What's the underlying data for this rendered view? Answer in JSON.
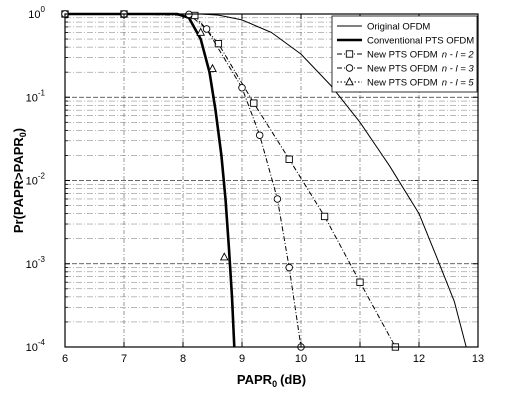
{
  "chart_data": {
    "type": "line",
    "xlabel": "PAPR",
    "xlabel_sub": "0",
    "xlabel_unit": "(dB)",
    "ylabel": "Pr(PAPR>PAPR",
    "ylabel_sub": "0",
    "ylabel_close": ")",
    "xlim": [
      6,
      13
    ],
    "ylim": [
      0.0001,
      1
    ],
    "yscale": "log",
    "xticks": [
      "6",
      "7",
      "8",
      "9",
      "10",
      "11",
      "12",
      "13"
    ],
    "yticks": [
      {
        "base": "10",
        "exp": "0"
      },
      {
        "base": "10",
        "exp": "-1"
      },
      {
        "base": "10",
        "exp": "-2"
      },
      {
        "base": "10",
        "exp": "-3"
      },
      {
        "base": "10",
        "exp": "-4"
      }
    ],
    "grid": true,
    "legend_position": "top-right",
    "series": [
      {
        "name": "Original OFDM",
        "style": "solid",
        "marker": "none",
        "width": "thin",
        "points": [
          [
            6,
            1
          ],
          [
            7,
            1
          ],
          [
            8,
            1
          ],
          [
            8.3,
            0.999
          ],
          [
            8.6,
            0.97
          ],
          [
            9,
            0.85
          ],
          [
            9.5,
            0.6
          ],
          [
            10,
            0.33
          ],
          [
            10.5,
            0.14
          ],
          [
            11,
            0.05
          ],
          [
            11.5,
            0.015
          ],
          [
            12,
            0.004
          ],
          [
            12.3,
            0.0012
          ],
          [
            12.6,
            0.00035
          ],
          [
            12.8,
            0.0001
          ]
        ]
      },
      {
        "name": "Conventional PTS OFDM",
        "style": "solid",
        "marker": "none",
        "width": "thick",
        "points": [
          [
            6,
            1
          ],
          [
            7,
            1
          ],
          [
            7.9,
            1
          ],
          [
            8.1,
            0.9
          ],
          [
            8.3,
            0.5
          ],
          [
            8.45,
            0.2
          ],
          [
            8.55,
            0.07
          ],
          [
            8.65,
            0.02
          ],
          [
            8.72,
            0.006
          ],
          [
            8.78,
            0.0015
          ],
          [
            8.83,
            0.0004
          ],
          [
            8.87,
            0.0001
          ]
        ]
      },
      {
        "name": "New PTS OFDM  n - l = 2",
        "label_parts": [
          "New PTS OFDM",
          "n - l = 2"
        ],
        "style": "dashdot",
        "marker": "square",
        "width": "thin",
        "points": [
          [
            6,
            1
          ],
          [
            7,
            1
          ],
          [
            8.2,
            0.96
          ],
          [
            8.6,
            0.44
          ],
          [
            9.2,
            0.085
          ],
          [
            9.8,
            0.018
          ],
          [
            10.4,
            0.0037
          ],
          [
            11,
            0.0006
          ],
          [
            11.6,
            0.0001
          ]
        ]
      },
      {
        "name": "New PTS OFDM  n - l = 3",
        "label_parts": [
          "New PTS OFDM",
          "n - l = 3"
        ],
        "style": "dashdot",
        "marker": "circle",
        "width": "thin",
        "points": [
          [
            6,
            1
          ],
          [
            7,
            1
          ],
          [
            8.1,
            0.99
          ],
          [
            8.4,
            0.66
          ],
          [
            9,
            0.13
          ],
          [
            9.3,
            0.035
          ],
          [
            9.6,
            0.006
          ],
          [
            9.8,
            0.0009
          ],
          [
            10,
            0.0001
          ]
        ]
      },
      {
        "name": "New PTS OFDM  n - l = 5",
        "label_parts": [
          "New PTS OFDM",
          "n - l = 5"
        ],
        "style": "dotted",
        "marker": "triangle",
        "width": "thin",
        "points": [
          [
            6,
            1
          ],
          [
            7,
            1
          ],
          [
            7.9,
            1
          ],
          [
            8.1,
            0.9
          ],
          [
            8.3,
            0.5
          ],
          [
            8.45,
            0.2
          ],
          [
            8.55,
            0.07
          ],
          [
            8.65,
            0.02
          ],
          [
            8.72,
            0.0065
          ],
          [
            8.78,
            0.0015
          ],
          [
            8.83,
            0.0004
          ],
          [
            8.87,
            0.0001
          ]
        ],
        "markers_at": [
          [
            8.3,
            0.6
          ],
          [
            8.5,
            0.22
          ],
          [
            8.7,
            0.0012
          ]
        ]
      }
    ]
  }
}
